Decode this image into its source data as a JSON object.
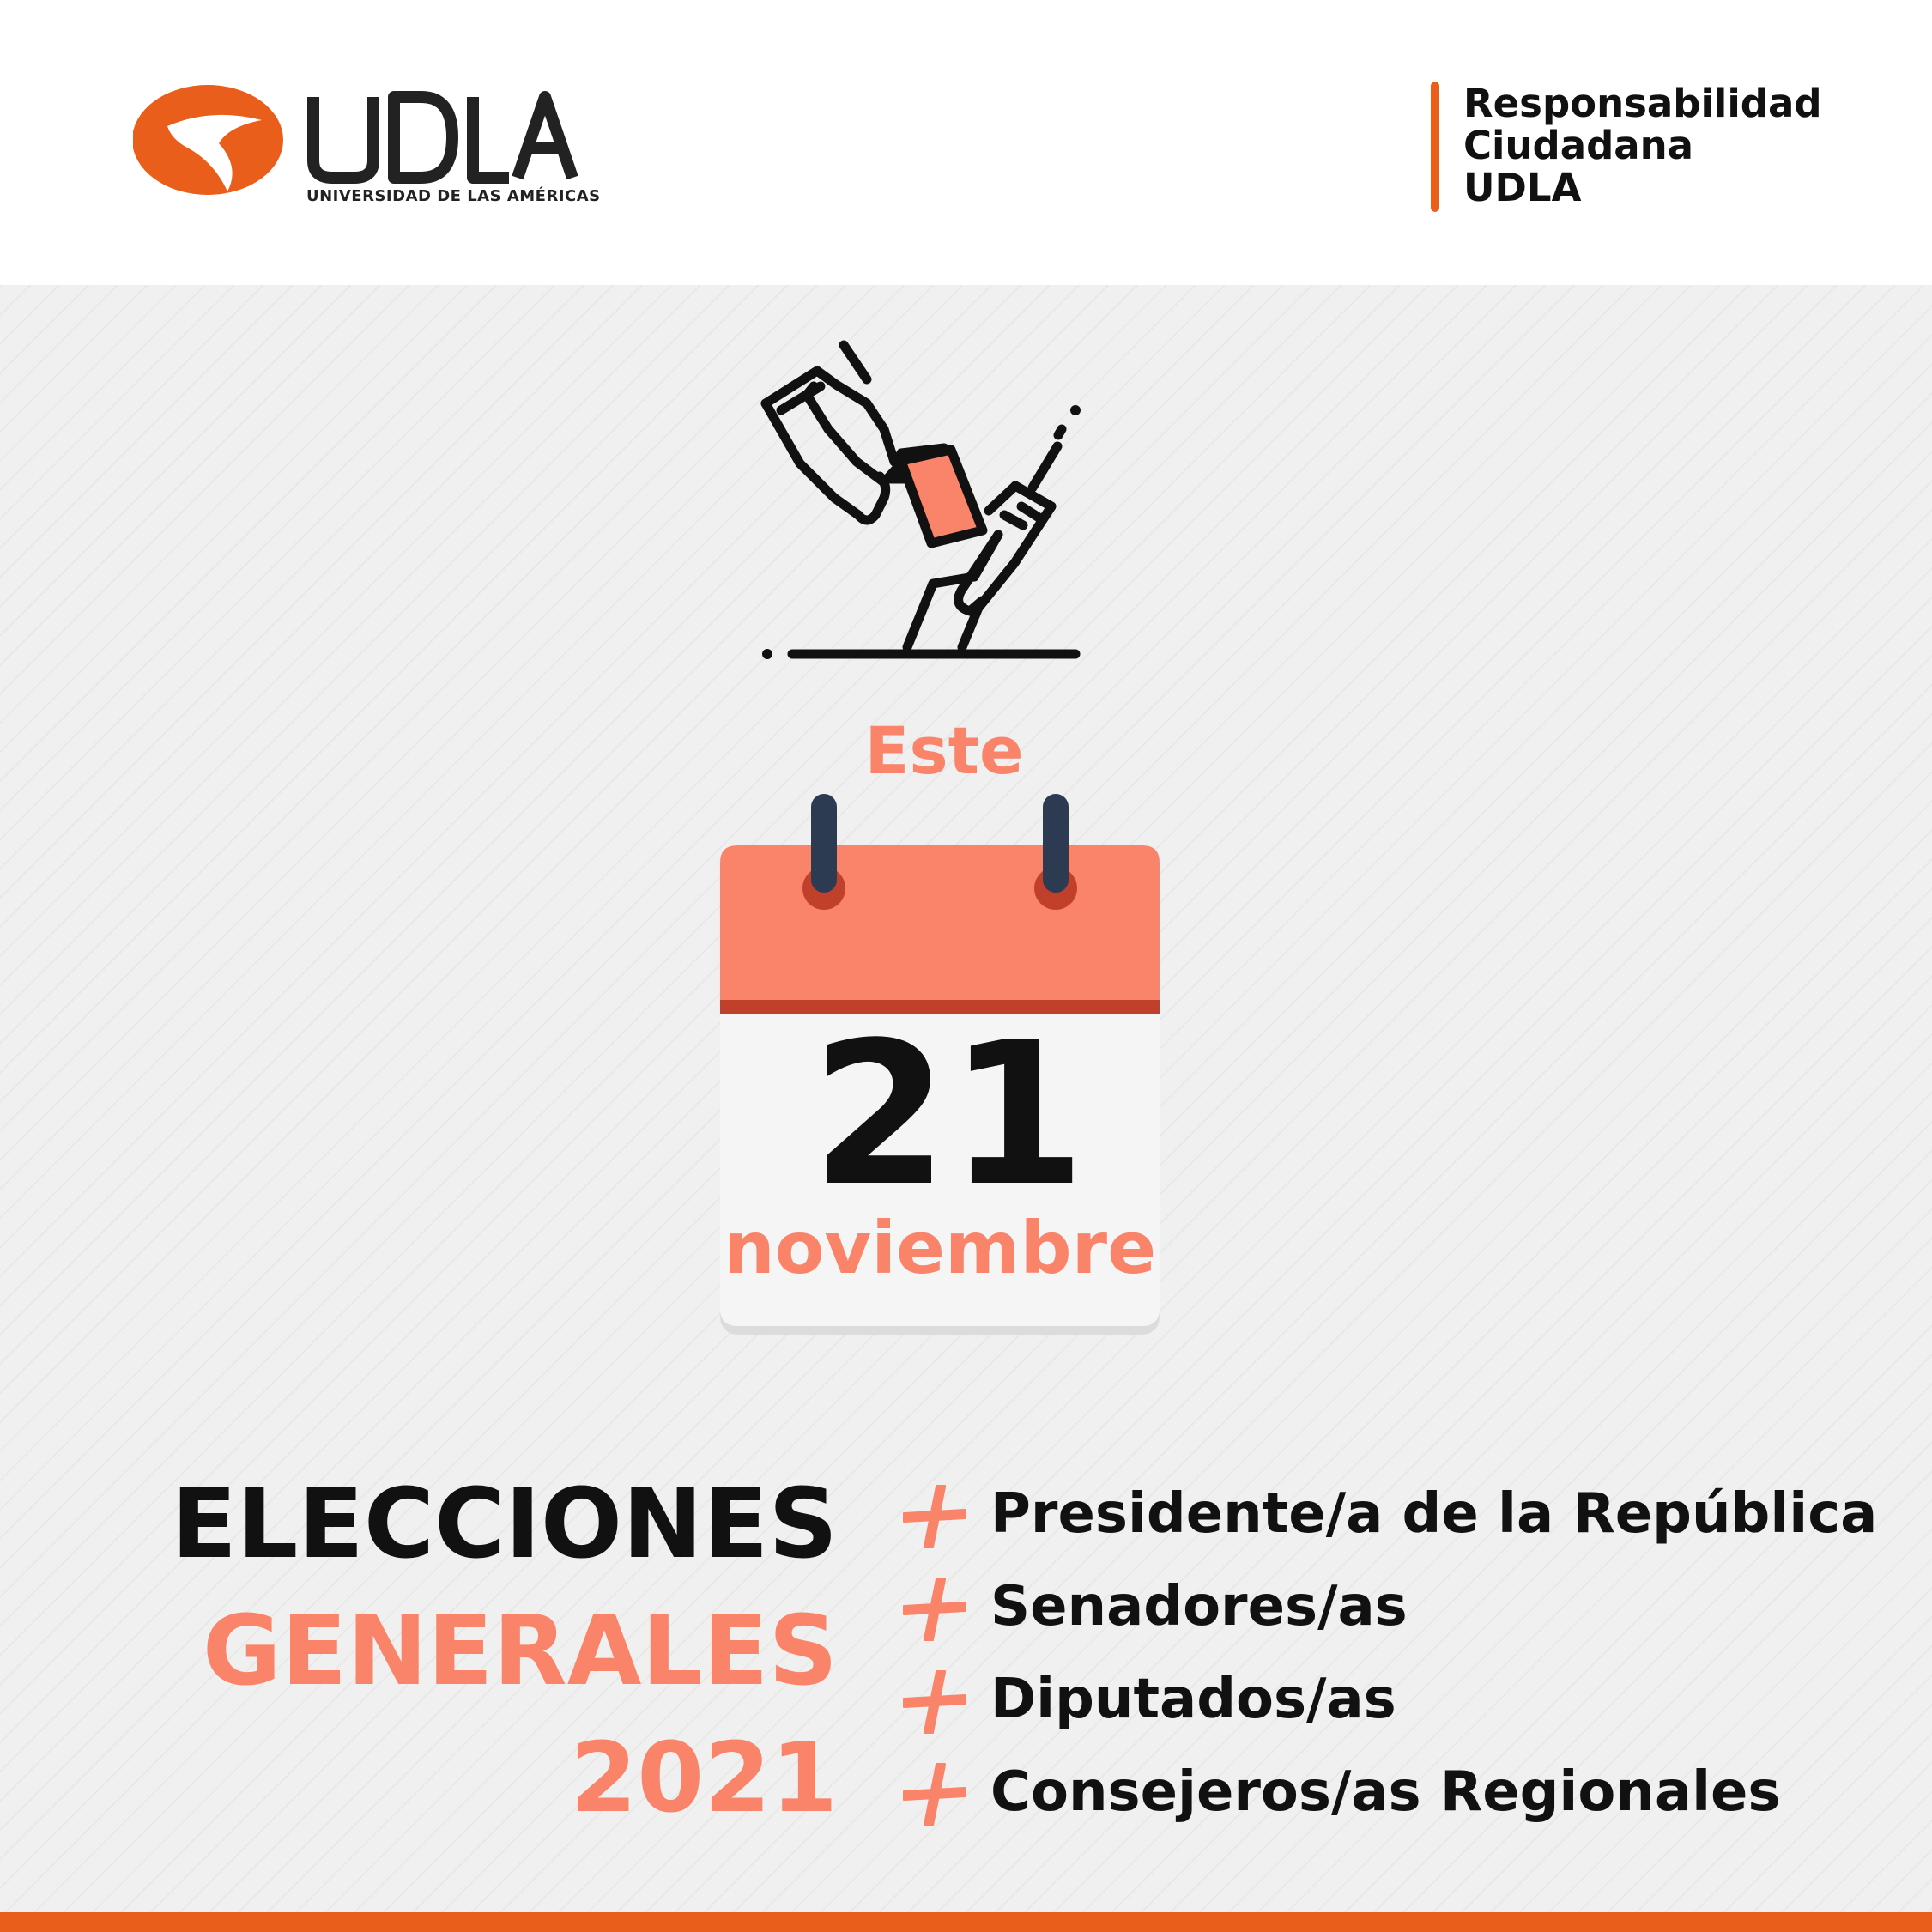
{
  "brand": {
    "logo_text": "UDLA",
    "logo_subtitle": "UNIVERSIDAD DE LAS AMÉRICAS",
    "tagline": [
      "Responsabilidad",
      "Ciudadana",
      "UDLA"
    ]
  },
  "event": {
    "prefix": "Este",
    "day": "21",
    "month": "noviembre"
  },
  "title": {
    "line1": "ELECCIONES",
    "line2": "GENERALES",
    "line3": "2021"
  },
  "offices": [
    {
      "label": "Presidente/a de la República"
    },
    {
      "label": "Senadores/as"
    },
    {
      "label": "Diputados/as"
    },
    {
      "label": "Consejeros/as Regionales"
    }
  ],
  "colors": {
    "brand_orange": "#e85e1a",
    "salmon": "#fa8469",
    "dark_red": "#c0402c",
    "text_dark": "#111111",
    "background": "#f0f0f0",
    "ring_navy": "#2c3a52"
  },
  "icons": [
    "voting-hands-icon",
    "calendar-icon",
    "plus-icon"
  ]
}
